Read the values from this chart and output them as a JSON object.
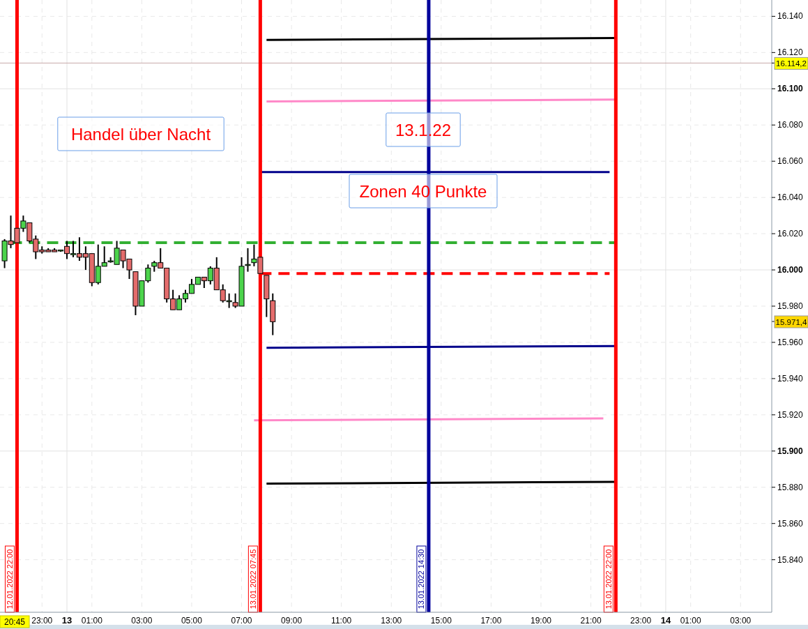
{
  "chart_data": {
    "type": "candlestick",
    "x": [
      "2022-01-12T21:30",
      "2022-01-12T21:45",
      "2022-01-12T22:00",
      "2022-01-12T22:15",
      "2022-01-12T22:30",
      "2022-01-12T22:45",
      "2022-01-12T23:00",
      "2022-01-12T23:15",
      "2022-01-12T23:30",
      "2022-01-12T23:45",
      "2022-01-13T00:00",
      "2022-01-13T00:15",
      "2022-01-13T00:30",
      "2022-01-13T00:45",
      "2022-01-13T01:00",
      "2022-01-13T01:15",
      "2022-01-13T01:30",
      "2022-01-13T01:45",
      "2022-01-13T02:00",
      "2022-01-13T02:15",
      "2022-01-13T02:30",
      "2022-01-13T02:45",
      "2022-01-13T03:00",
      "2022-01-13T03:15",
      "2022-01-13T03:30",
      "2022-01-13T03:45",
      "2022-01-13T04:00",
      "2022-01-13T04:15",
      "2022-01-13T04:30",
      "2022-01-13T04:45",
      "2022-01-13T05:00",
      "2022-01-13T05:15",
      "2022-01-13T05:30",
      "2022-01-13T05:45",
      "2022-01-13T06:00",
      "2022-01-13T06:15",
      "2022-01-13T06:30",
      "2022-01-13T06:45",
      "2022-01-13T07:00",
      "2022-01-13T07:15",
      "2022-01-13T07:30",
      "2022-01-13T07:45",
      "2022-01-13T08:00",
      "2022-01-13T08:15"
    ],
    "ohlc": [
      [
        16005,
        16017,
        16001,
        16016
      ],
      [
        16016,
        16030,
        16012,
        16014
      ],
      [
        16023,
        16023,
        16015,
        16015
      ],
      [
        16023,
        16030,
        16021,
        16027
      ],
      [
        16026,
        16026,
        16015,
        16016
      ],
      [
        16017,
        16019,
        16006,
        16010
      ],
      [
        16011,
        16013,
        16009,
        16010
      ],
      [
        16011,
        16012,
        16010,
        16010
      ],
      [
        16011,
        16012,
        16010,
        16010
      ],
      [
        16011,
        16011,
        16010,
        16011
      ],
      [
        16013,
        16016,
        16006,
        16009
      ],
      [
        16009,
        16016,
        16007,
        16009
      ],
      [
        16009,
        16018,
        16005,
        16007
      ],
      [
        16009,
        16013,
        16000,
        16007
      ],
      [
        16009,
        16009,
        15991,
        15993
      ],
      [
        15993,
        16014,
        15992,
        16002
      ],
      [
        16002,
        16013,
        16002,
        16004
      ],
      [
        16005,
        16007,
        16004,
        16005
      ],
      [
        16003,
        16016,
        16003,
        16012
      ],
      [
        16011,
        16011,
        16001,
        16005
      ],
      [
        16006,
        16006,
        15995,
        16000
      ],
      [
        15999,
        15999,
        15975,
        15980
      ],
      [
        15980,
        15994,
        15980,
        15994
      ],
      [
        15994,
        16003,
        15993,
        16001
      ],
      [
        16002,
        16005,
        15999,
        16004
      ],
      [
        16004,
        16012,
        16001,
        16001
      ],
      [
        16001,
        16001,
        15982,
        15984
      ],
      [
        15984,
        15989,
        15978,
        15978
      ],
      [
        15978,
        15986,
        15978,
        15984
      ],
      [
        15984,
        15989,
        15982,
        15987
      ],
      [
        15987,
        15995,
        15987,
        15992
      ],
      [
        15992,
        15996,
        15992,
        15996
      ],
      [
        15996,
        15996,
        15990,
        15994
      ],
      [
        15994,
        16002,
        15992,
        16001
      ],
      [
        16001,
        16007,
        15989,
        15989
      ],
      [
        15989,
        15992,
        15982,
        15983
      ],
      [
        15983,
        15987,
        15979,
        15983
      ],
      [
        15982,
        15987,
        15979,
        15980
      ],
      [
        15980,
        16007,
        15980,
        16002
      ],
      [
        16003,
        16012,
        15999,
        16003
      ],
      [
        16004,
        16014,
        16002,
        16006
      ],
      [
        16007,
        16007,
        15998,
        15998
      ],
      [
        15997,
        15997,
        15974,
        15984
      ],
      [
        15983,
        15987,
        15964,
        15971.4
      ]
    ],
    "series": [
      {
        "type": "line",
        "color": "#000000",
        "line_style": "solid",
        "x": [
          "2022-01-13T08:00",
          "2022-01-13T22:00"
        ],
        "values": [
          16127,
          16128
        ]
      },
      {
        "type": "line",
        "color": "#ff88c8",
        "line_style": "solid",
        "x": [
          "2022-01-13T08:00",
          "2022-01-13T22:00"
        ],
        "values": [
          16093,
          16094
        ]
      },
      {
        "type": "line",
        "color": "#00008b",
        "line_style": "solid",
        "x": [
          "2022-01-13T07:45",
          "2022-01-13T21:45"
        ],
        "values": [
          16054,
          16054
        ]
      },
      {
        "type": "line",
        "color": "#33b033",
        "line_style": "dashed",
        "x": [
          "2022-01-12T21:45",
          "2022-01-13T22:00"
        ],
        "values": [
          16015,
          16015
        ]
      },
      {
        "type": "line",
        "color": "#ff0000",
        "line_style": "dashed",
        "x": [
          "2022-01-13T07:45",
          "2022-01-13T21:45"
        ],
        "values": [
          15998,
          15998
        ]
      },
      {
        "type": "line",
        "color": "#00008b",
        "line_style": "solid",
        "x": [
          "2022-01-13T08:00",
          "2022-01-13T22:00"
        ],
        "values": [
          15957,
          15958
        ]
      },
      {
        "type": "line",
        "color": "#ff88c8",
        "line_style": "solid",
        "x": [
          "2022-01-13T07:30",
          "2022-01-13T21:30"
        ],
        "values": [
          15917,
          15918
        ]
      },
      {
        "type": "line",
        "color": "#000000",
        "line_style": "solid",
        "x": [
          "2022-01-13T08:00",
          "2022-01-13T22:00"
        ],
        "values": [
          15882,
          15883
        ]
      }
    ],
    "xlim": [
      "2022-01-12T21:19",
      "2022-01-14T04:15"
    ],
    "xticks": [
      {
        "value": "2022-01-12T23:00",
        "label": "23:00"
      },
      {
        "value": "2022-01-13T00:00",
        "label": "13"
      },
      {
        "value": "2022-01-13T01:00",
        "label": "01:00"
      },
      {
        "value": "2022-01-13T03:00",
        "label": "03:00"
      },
      {
        "value": "2022-01-13T05:00",
        "label": "05:00"
      },
      {
        "value": "2022-01-13T07:00",
        "label": "07:00"
      },
      {
        "value": "2022-01-13T09:00",
        "label": "09:00"
      },
      {
        "value": "2022-01-13T11:00",
        "label": "11:00"
      },
      {
        "value": "2022-01-13T13:00",
        "label": "13:00"
      },
      {
        "value": "2022-01-13T15:00",
        "label": "15:00"
      },
      {
        "value": "2022-01-13T17:00",
        "label": "17:00"
      },
      {
        "value": "2022-01-13T19:00",
        "label": "19:00"
      },
      {
        "value": "2022-01-13T21:00",
        "label": "21:00"
      },
      {
        "value": "2022-01-13T23:00",
        "label": "23:00"
      },
      {
        "value": "2022-01-14T00:00",
        "label": "14"
      },
      {
        "value": "2022-01-14T01:00",
        "label": "01:00"
      },
      {
        "value": "2022-01-14T03:00",
        "label": "03:00"
      }
    ],
    "ylim": [
      15811,
      16149
    ],
    "yticks": [
      {
        "value": 15840,
        "label": "15.840"
      },
      {
        "value": 15860,
        "label": "15.860"
      },
      {
        "value": 15880,
        "label": "15.880"
      },
      {
        "value": 15900,
        "label": "15.900"
      },
      {
        "value": 15920,
        "label": "15.920"
      },
      {
        "value": 15940,
        "label": "15.940"
      },
      {
        "value": 15960,
        "label": "15.960"
      },
      {
        "value": 15980,
        "label": "15.980"
      },
      {
        "value": 16000,
        "label": "16.000"
      },
      {
        "value": 16020,
        "label": "16.020"
      },
      {
        "value": 16040,
        "label": "16.040"
      },
      {
        "value": 16060,
        "label": "16.060"
      },
      {
        "value": 16080,
        "label": "16.080"
      },
      {
        "value": 16100,
        "label": "16.100"
      },
      {
        "value": 16120,
        "label": "16.120"
      },
      {
        "value": 16140,
        "label": "16.140"
      }
    ],
    "grid": true,
    "ref_lines": [
      {
        "axis": "x",
        "value": "2022-01-12T22:00",
        "label": "12.01.2022 22:00",
        "color": "#ff0000"
      },
      {
        "axis": "x",
        "value": "2022-01-13T07:45",
        "label": "13.01.2022 07:45",
        "color": "#ff0000"
      },
      {
        "axis": "x",
        "value": "2022-01-13T14:30",
        "label": "13.01.2022 14:30",
        "color": "#00009c"
      },
      {
        "axis": "x",
        "value": "2022-01-13T22:00",
        "label": "13.01.2022 22:00",
        "color": "#ff0000"
      },
      {
        "axis": "y",
        "value": 16114.2,
        "label": "16.114,2",
        "color": "#c8a8a8"
      }
    ],
    "annotations": [
      "Handel über Nacht",
      "13.1.22",
      "Zonen 40 Punkte",
      "20:45",
      "15.971,4"
    ]
  }
}
